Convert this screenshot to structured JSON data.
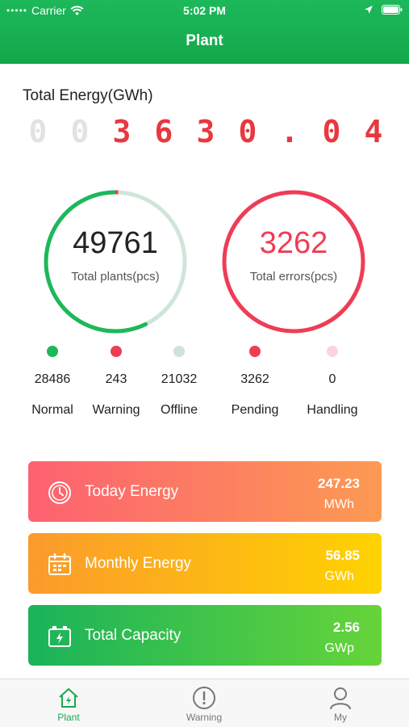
{
  "status_bar": {
    "carrier": "Carrier",
    "time": "5:02 PM"
  },
  "header": {
    "title": "Plant"
  },
  "total_energy": {
    "label": "Total Energy(GWh)",
    "digits": [
      "0",
      "0",
      "3",
      "6",
      "3",
      "0",
      ".",
      "0",
      "4"
    ]
  },
  "plants": {
    "value": "49761",
    "label": "Total plants(pcs)",
    "color": "#1db85a"
  },
  "errors": {
    "value": "3262",
    "label": "Total errors(pcs)",
    "color": "#ee3d56"
  },
  "legend": [
    {
      "count": "28486",
      "name": "Normal",
      "color": "#1db85a"
    },
    {
      "count": "243",
      "name": "Warning",
      "color": "#ee3d56"
    },
    {
      "count": "21032",
      "name": "Offline",
      "color": "#cde3d6"
    },
    {
      "count": "3262",
      "name": "Pending",
      "color": "#ee3d56"
    },
    {
      "count": "0",
      "name": "Handling",
      "color": "#fbd3dc"
    }
  ],
  "cards": [
    {
      "label": "Today Energy",
      "value": "247.23",
      "unit": "MWh",
      "icon": "clock-icon"
    },
    {
      "label": "Monthly Energy",
      "value": "56.85",
      "unit": "GWh",
      "icon": "calendar-icon"
    },
    {
      "label": "Total Capacity",
      "value": "2.56",
      "unit": "GWp",
      "icon": "battery-icon"
    }
  ],
  "tabs": [
    {
      "label": "Plant",
      "icon": "plant-home-icon",
      "active": true
    },
    {
      "label": "Warning",
      "icon": "warning-icon",
      "active": false
    },
    {
      "label": "My",
      "icon": "user-icon",
      "active": false
    }
  ]
}
